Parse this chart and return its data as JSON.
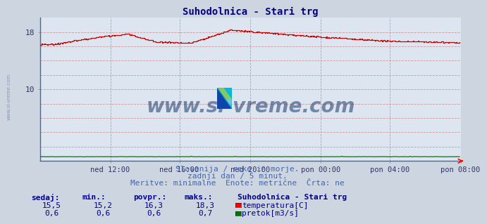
{
  "title": "Suhodolnica - Stari trg",
  "title_color": "#000080",
  "bg_color": "#ccd5e0",
  "plot_bg_color": "#dde5f0",
  "grid_color_v": "#cc9999",
  "grid_color_h": "#cc9999",
  "axis_color": "#4466aa",
  "xlabel_ticks": [
    "ned 12:00",
    "ned 16:00",
    "ned 20:00",
    "pon 00:00",
    "pon 04:00",
    "pon 08:00"
  ],
  "tick_frac": [
    0.1667,
    0.3333,
    0.5,
    0.6667,
    0.8333,
    1.0
  ],
  "total_points": 432,
  "ylim": [
    0,
    20
  ],
  "ytick_vals": [
    10,
    18
  ],
  "ytick_labels": [
    "10",
    "18"
  ],
  "temp_color": "#cc0000",
  "flow_color": "#007700",
  "watermark_text": "www.si-vreme.com",
  "watermark_color": "#1a3a6a",
  "subtitle1": "Slovenija / reke in morje.",
  "subtitle2": "zadnji dan / 5 minut.",
  "subtitle3": "Meritve: minimalne  Enote: metrične  Črta: ne",
  "subtitle_color": "#4466aa",
  "legend_title": "Suhodolnica - Stari trg",
  "legend_color": "#000080",
  "stats_color": "#000080",
  "stats_label_color": "#000099",
  "col_headers": [
    "sedaj:",
    "min.:",
    "povpr.:",
    "maks.:"
  ],
  "temp_stats": [
    "15,5",
    "15,2",
    "16,3",
    "18,3"
  ],
  "flow_stats": [
    "0,6",
    "0,6",
    "0,6",
    "0,7"
  ],
  "temp_label": "temperatura[C]",
  "flow_label": "pretok[m3/s]"
}
